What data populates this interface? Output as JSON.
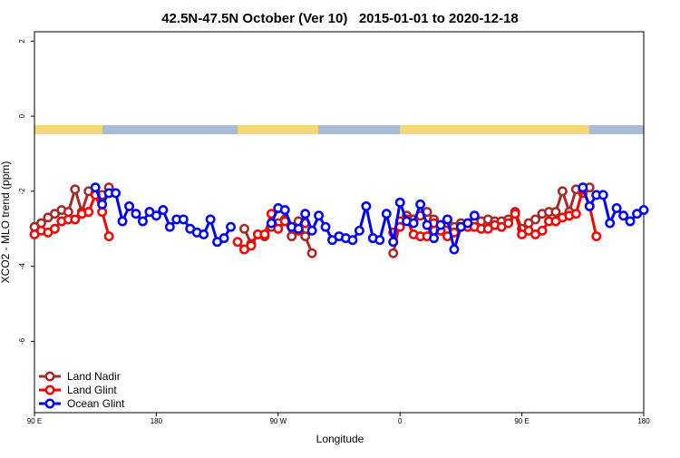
{
  "chart_data": {
    "type": "line",
    "title": "42.5N-47.5N October (Ver 10)   2015-01-01 to 2020-12-18",
    "x_label": "Longitude",
    "y_label": "XCO2 - MLO trend (ppm)",
    "xlim": [
      90,
      540
    ],
    "ylim": [
      -7.9,
      2.25
    ],
    "xticks": [
      {
        "value": 90,
        "label": "90 E"
      },
      {
        "value": 180,
        "label": "180"
      },
      {
        "value": 270,
        "label": "90 W"
      },
      {
        "value": 360,
        "label": "0"
      },
      {
        "value": 450,
        "label": "90 E"
      },
      {
        "value": 540,
        "label": "180"
      }
    ],
    "yticks": [
      -6,
      -4,
      -2,
      0,
      2
    ],
    "legend": "bottom-left",
    "x": [
      90,
      95,
      100,
      105,
      110,
      115,
      120,
      125,
      130,
      135,
      140,
      145,
      150,
      155,
      160,
      165,
      170,
      175,
      180,
      185,
      190,
      195,
      200,
      205,
      210,
      215,
      220,
      225,
      230,
      235,
      240,
      245,
      250,
      255,
      260,
      265,
      270,
      275,
      280,
      285,
      290,
      295,
      300,
      305,
      310,
      315,
      320,
      325,
      330,
      335,
      340,
      345,
      350,
      355,
      360,
      365,
      370,
      375,
      380,
      385,
      390,
      395,
      400,
      405,
      410,
      415,
      420,
      425,
      430,
      435,
      440,
      445,
      450,
      455,
      460,
      465,
      470,
      475,
      480,
      485,
      490,
      495,
      500,
      505,
      510,
      515,
      520,
      525,
      530,
      535,
      540
    ],
    "series": [
      {
        "name": "Land Nadir",
        "color": "#a52a2a",
        "values": [
          -2.95,
          -2.85,
          -2.7,
          -2.6,
          -2.5,
          -2.55,
          -1.95,
          -2.55,
          -2.0,
          -2.05,
          -2.1,
          -1.9,
          null,
          null,
          null,
          null,
          null,
          null,
          null,
          null,
          null,
          null,
          null,
          null,
          null,
          null,
          null,
          null,
          null,
          null,
          null,
          -3.0,
          -3.4,
          -3.15,
          -3.2,
          -2.95,
          -2.85,
          -2.75,
          -3.2,
          -2.8,
          -3.2,
          -3.65,
          null,
          null,
          null,
          null,
          null,
          null,
          null,
          null,
          null,
          null,
          null,
          -3.65,
          -2.8,
          -2.65,
          -2.75,
          -2.65,
          -2.55,
          -2.75,
          -2.9,
          -2.85,
          -2.95,
          -2.85,
          -2.85,
          -2.8,
          -2.8,
          -2.75,
          -2.8,
          -2.8,
          -2.75,
          -2.55,
          -3.0,
          -2.85,
          -2.75,
          -2.6,
          -2.55,
          -2.55,
          -2.0,
          -2.55,
          -1.95,
          -2.05,
          -1.9,
          null,
          null,
          null,
          null,
          null,
          null,
          null,
          null
        ]
      },
      {
        "name": "Land Glint",
        "color": "#ff0000",
        "values": [
          -3.15,
          -3.05,
          -3.1,
          -3.0,
          -2.8,
          -2.75,
          -2.75,
          -2.6,
          -2.55,
          -2.1,
          -2.55,
          -3.2,
          null,
          null,
          null,
          null,
          null,
          null,
          null,
          null,
          null,
          null,
          null,
          null,
          null,
          null,
          null,
          null,
          null,
          null,
          -3.35,
          -3.55,
          -3.45,
          -3.15,
          -3.15,
          -2.6,
          -3.0,
          -2.8,
          -2.95,
          -3.05,
          -2.85,
          null,
          null,
          null,
          null,
          null,
          null,
          null,
          null,
          null,
          null,
          null,
          null,
          -3.1,
          -2.95,
          -2.75,
          -3.15,
          -3.2,
          -3.2,
          -2.85,
          -3.05,
          -3.2,
          -3.1,
          -2.95,
          -2.95,
          -2.95,
          -3.0,
          -3.0,
          -2.9,
          -2.95,
          -2.85,
          -2.6,
          -3.15,
          -3.05,
          -3.15,
          -3.05,
          -2.8,
          -2.8,
          -2.7,
          -2.65,
          -2.6,
          -1.95,
          -2.4,
          -3.2,
          null,
          null,
          null,
          null,
          null,
          null,
          null
        ]
      },
      {
        "name": "Ocean Glint",
        "color": "#0000ff",
        "values": [
          null,
          null,
          null,
          null,
          null,
          null,
          null,
          null,
          null,
          -1.9,
          -2.35,
          -2.05,
          -2.05,
          -2.8,
          -2.4,
          -2.6,
          -2.8,
          -2.55,
          -2.65,
          -2.5,
          -2.95,
          -2.75,
          -2.75,
          -3.0,
          -3.1,
          -3.15,
          -2.75,
          -3.35,
          -3.25,
          -2.95,
          null,
          null,
          null,
          null,
          null,
          -2.85,
          -2.45,
          -2.5,
          -2.95,
          -3.0,
          -2.6,
          -3.05,
          -2.65,
          -2.95,
          -3.3,
          -3.2,
          -3.25,
          -3.3,
          -3.05,
          -2.4,
          -3.25,
          -3.3,
          -2.6,
          -3.35,
          -2.3,
          -2.8,
          -2.85,
          -2.35,
          -2.9,
          -3.25,
          -2.9,
          -2.75,
          -3.55,
          -2.95,
          -2.85,
          -2.65,
          null,
          null,
          null,
          null,
          null,
          null,
          null,
          null,
          null,
          null,
          null,
          null,
          null,
          null,
          null,
          -1.9,
          -2.4,
          -2.1,
          -2.1,
          -2.85,
          -2.45,
          -2.65,
          -2.8,
          -2.6,
          -2.5
        ]
      }
    ]
  }
}
